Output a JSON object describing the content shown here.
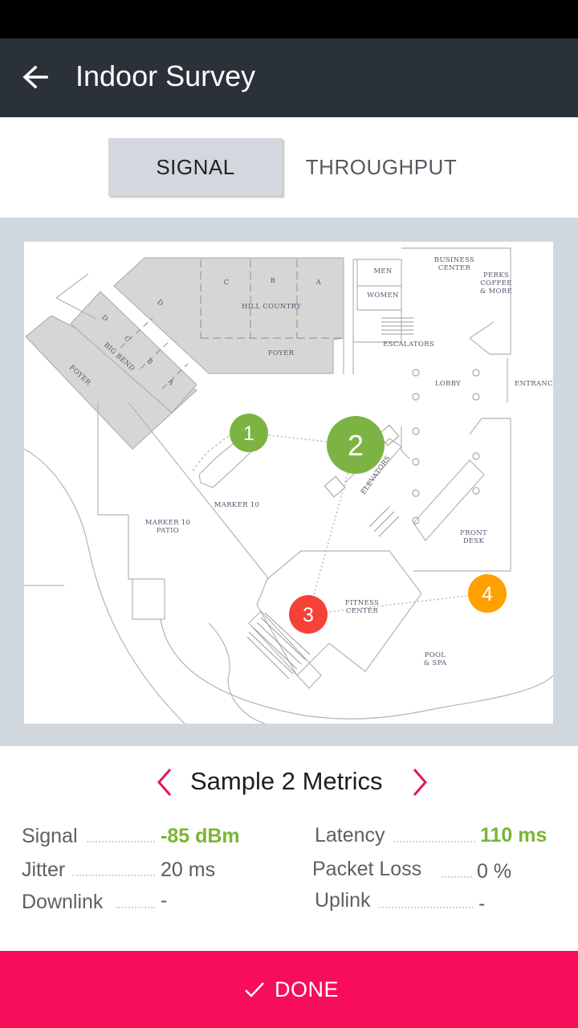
{
  "app": {
    "title": "Indoor Survey"
  },
  "tabs": [
    {
      "label": "SIGNAL",
      "selected": true
    },
    {
      "label": "THROUGHPUT",
      "selected": false
    }
  ],
  "map": {
    "labels": {
      "hill_country": "HILL COUNTRY",
      "foyer_top": "FOYER",
      "foyer_left": "FOYER",
      "big_bend": "BIG BEND",
      "marker10": "MARKER 10",
      "marker10_patio_1": "MARKER 10",
      "marker10_patio_2": "PATIO",
      "men": "MEN",
      "women": "WOMEN",
      "business_1": "BUSINESS",
      "business_2": "CENTER",
      "perks_1": "PERKS",
      "perks_2": "COFFEE",
      "perks_3": "& MORE",
      "escalators": "ESCALATORS",
      "lobby": "LOBBY",
      "entrance": "ENTRANCE",
      "elevators": "ELEVATORS",
      "front_desk_1": "FRONT",
      "front_desk_2": "DESK",
      "fitness_1": "FITNESS",
      "fitness_2": "CENTER",
      "pool_1": "POOL",
      "pool_2": "& SPA",
      "room_c": "C",
      "room_b": "B",
      "room_a": "A",
      "room_d": "D",
      "bb_d": "D",
      "bb_c": "C",
      "bb_b": "B",
      "bb_a": "A"
    },
    "samples": [
      {
        "label": "1",
        "color": "#7cb342",
        "selected": false
      },
      {
        "label": "2",
        "color": "#7cb342",
        "selected": true
      },
      {
        "label": "3",
        "color": "#f44336",
        "selected": false
      },
      {
        "label": "4",
        "color": "#ffa000",
        "selected": false
      }
    ]
  },
  "metrics": {
    "title": "Sample 2 Metrics",
    "prev_icon": "chevron-left-icon",
    "next_icon": "chevron-right-icon",
    "signal": {
      "label": "Signal",
      "value": "-85 dBm"
    },
    "latency": {
      "label": "Latency",
      "value": "110 ms"
    },
    "jitter": {
      "label": "Jitter",
      "value": "20 ms"
    },
    "packet_loss": {
      "label": "Packet Loss",
      "value": "0 %"
    },
    "downlink": {
      "label": "Downlink",
      "value": "-"
    },
    "uplink": {
      "label": "Uplink",
      "value": "-"
    }
  },
  "done": {
    "label": "DONE",
    "icon": "check-icon"
  },
  "colors": {
    "accent": "#f70d5a",
    "app_bar": "#2b3138",
    "good": "#7ab534"
  }
}
